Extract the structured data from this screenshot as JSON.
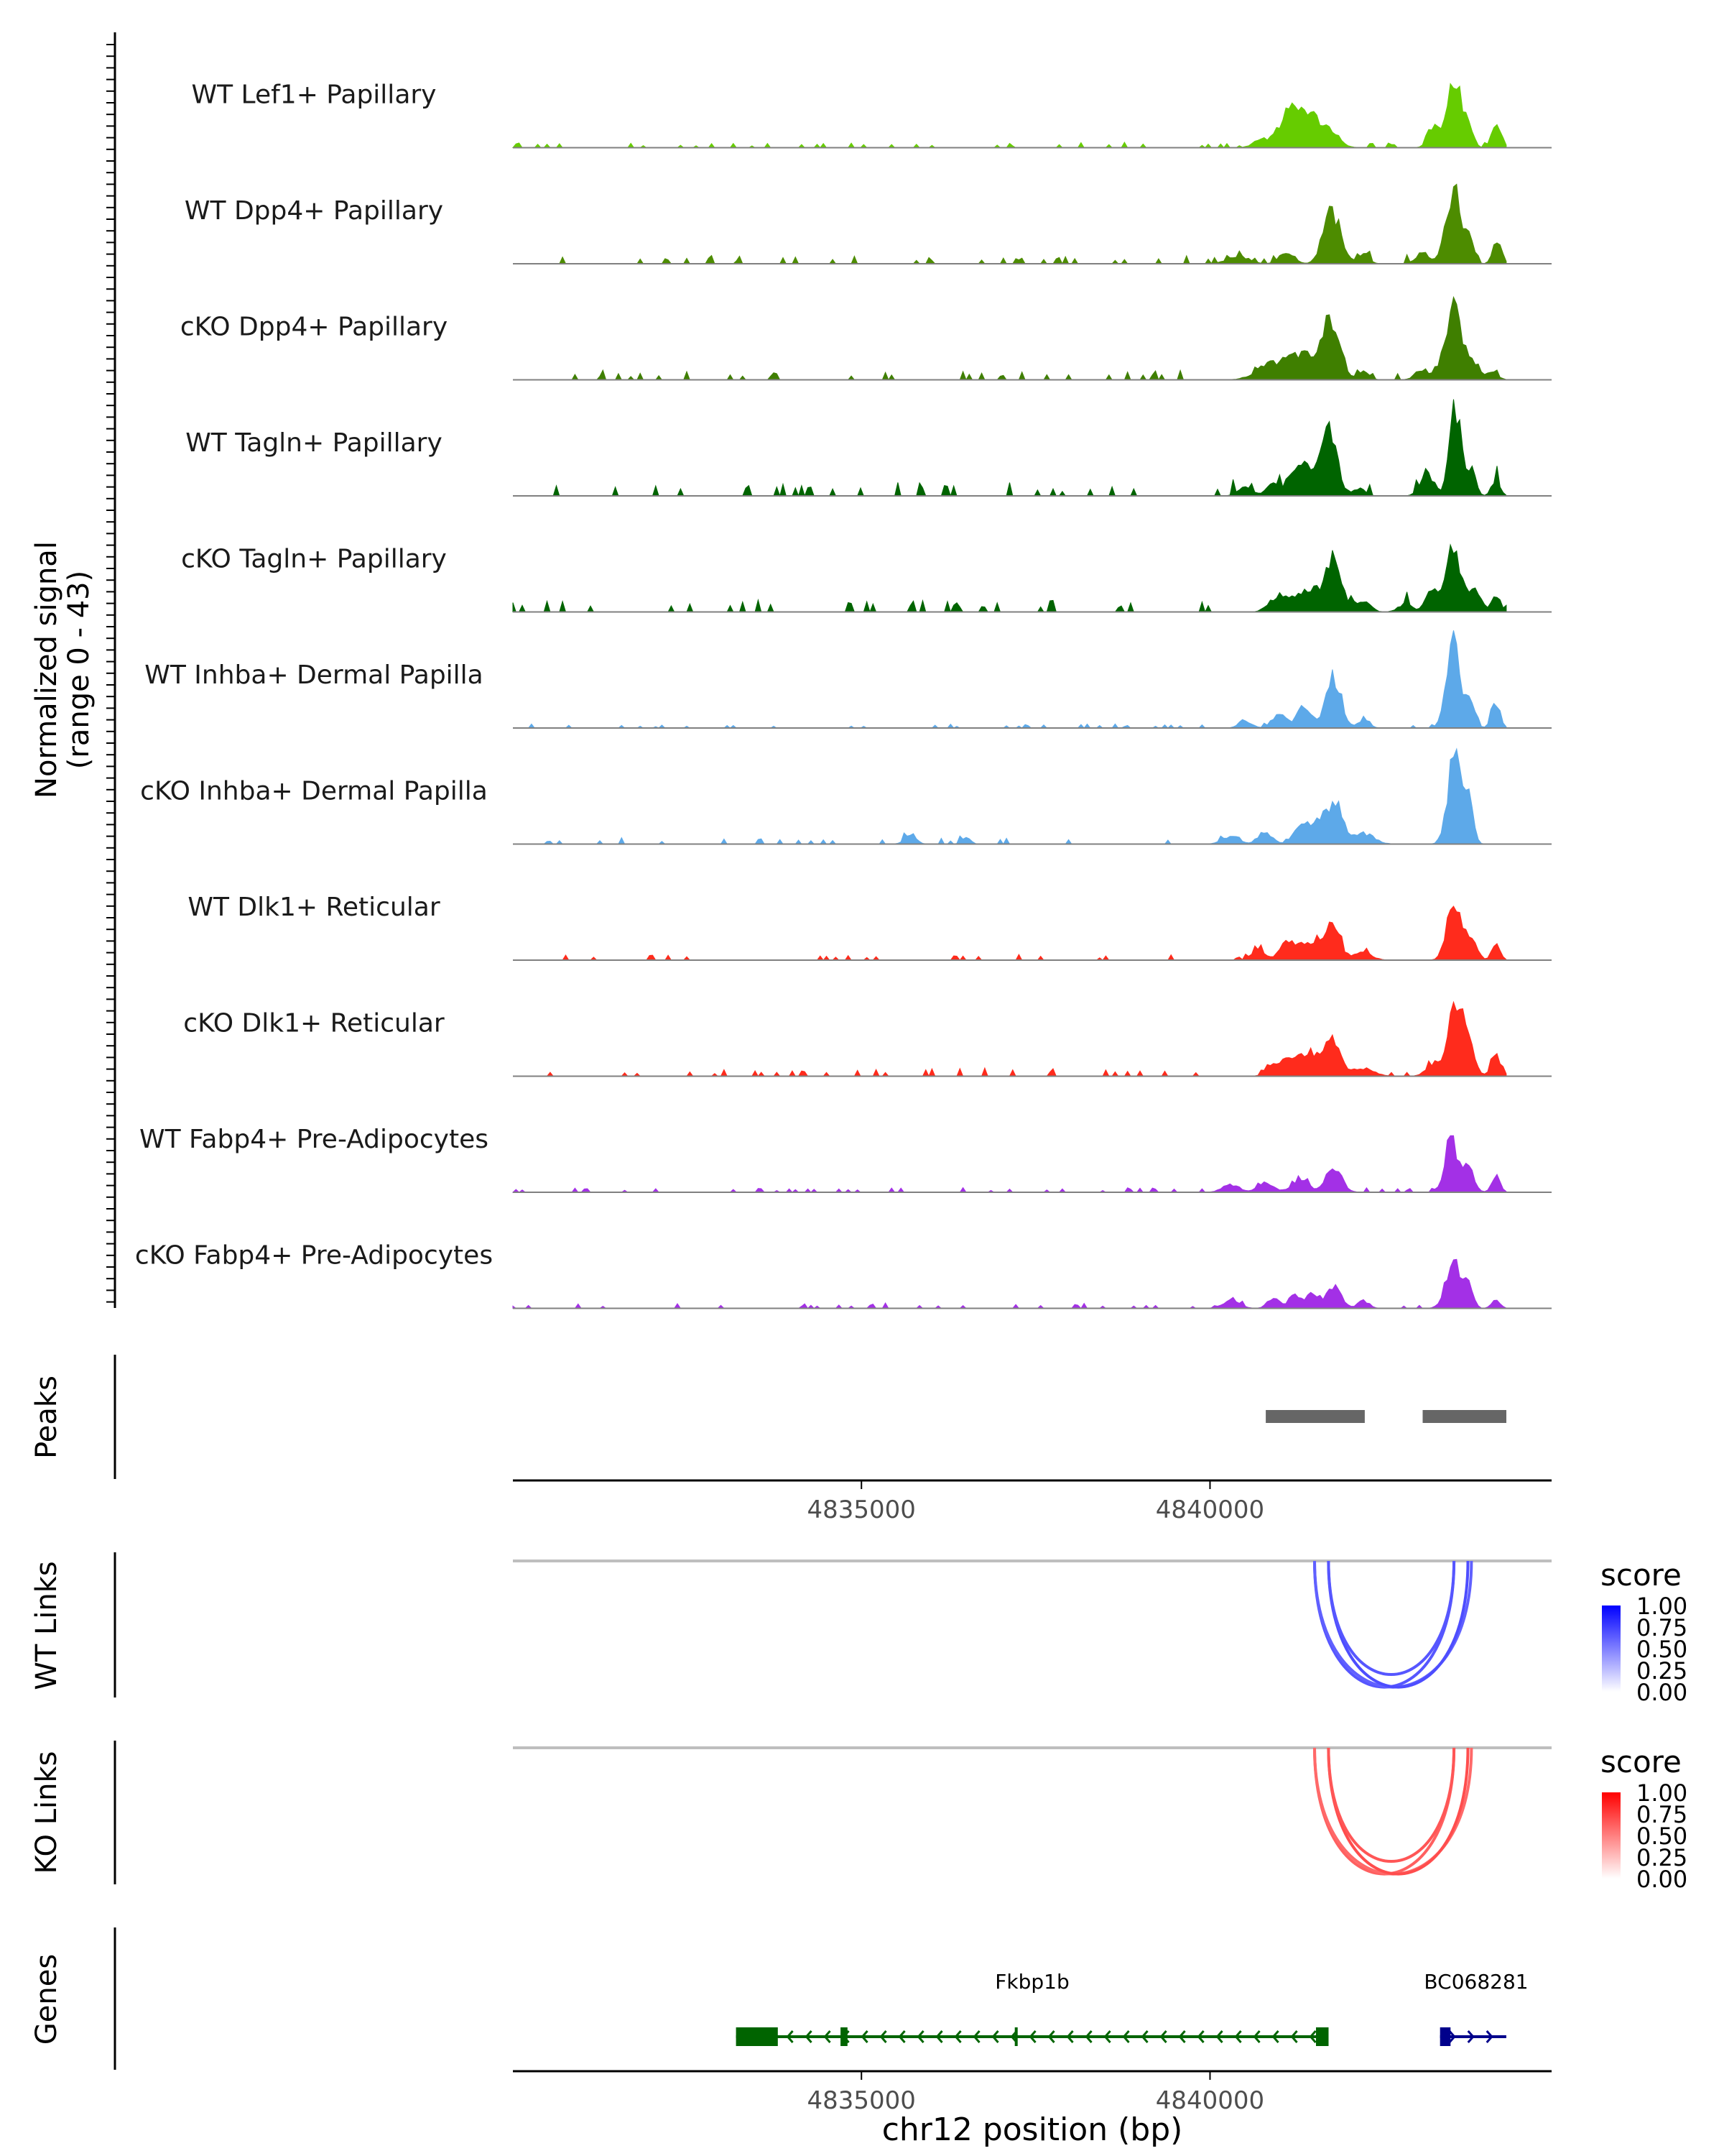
{
  "chart_data": {
    "type": "genome-coverage-track",
    "x_range": [
      4830000,
      4844900
    ],
    "xlabel": "chr12 position (bp)",
    "x_ticks": [
      4835000,
      4840000
    ],
    "x_tick_labels": [
      "4835000",
      "4840000"
    ],
    "coverage": {
      "ylabel_line1": "Normalized signal",
      "ylabel_line2": "(range 0 - 43)",
      "y_range": [
        0,
        43
      ],
      "tracks": [
        {
          "name": "WT Lef1+ Papillary",
          "color": "#66CC00",
          "peaks": [
            [
              4840700,
              100,
              2
            ],
            [
              4841300,
              250,
              16
            ],
            [
              4841750,
              120,
              3
            ],
            [
              4843200,
              80,
              8
            ],
            [
              4843500,
              100,
              27
            ],
            [
              4843720,
              60,
              8
            ],
            [
              4844120,
              70,
              7
            ],
            [
              4844050,
              40,
              3
            ]
          ],
          "noise": 0.8,
          "seed": 1
        },
        {
          "name": "WT Dpp4+ Papillary",
          "color": "#4D8C00",
          "peaks": [
            [
              4840400,
              150,
              3
            ],
            [
              4841100,
              100,
              5
            ],
            [
              4841750,
              120,
              20
            ],
            [
              4842200,
              80,
              4
            ],
            [
              4843050,
              100,
              4
            ],
            [
              4843500,
              110,
              28
            ],
            [
              4843730,
              60,
              8
            ],
            [
              4844120,
              60,
              10
            ]
          ],
          "noise": 1.2,
          "seed": 2
        },
        {
          "name": "cKO Dpp4+ Papillary",
          "color": "#3F7F00",
          "peaks": [
            [
              4840800,
              180,
              4
            ],
            [
              4841300,
              260,
              10
            ],
            [
              4841750,
              120,
              22
            ],
            [
              4842200,
              80,
              3
            ],
            [
              4843050,
              100,
              4
            ],
            [
              4843500,
              120,
              28
            ],
            [
              4843800,
              70,
              6
            ],
            [
              4844050,
              80,
              3
            ]
          ],
          "noise": 1.3,
          "seed": 3
        },
        {
          "name": "WT Tagln+ Papillary",
          "color": "#006400",
          "peaks": [
            [
              4840500,
              100,
              3
            ],
            [
              4840900,
              100,
              4
            ],
            [
              4841300,
              150,
              12
            ],
            [
              4841700,
              120,
              25
            ],
            [
              4842150,
              80,
              3
            ],
            [
              4843120,
              100,
              8
            ],
            [
              4843520,
              80,
              34
            ],
            [
              4843750,
              60,
              12
            ],
            [
              4844100,
              60,
              6
            ]
          ],
          "noise": 2.0,
          "seed": 4
        },
        {
          "name": "cKO Tagln+ Papillary",
          "color": "#006400",
          "peaks": [
            [
              4840900,
              100,
              4
            ],
            [
              4841200,
              150,
              6
            ],
            [
              4841500,
              120,
              8
            ],
            [
              4841780,
              110,
              20
            ],
            [
              4842200,
              100,
              4
            ],
            [
              4842800,
              100,
              3
            ],
            [
              4843200,
              100,
              8
            ],
            [
              4843500,
              100,
              25
            ],
            [
              4843800,
              80,
              10
            ],
            [
              4844100,
              60,
              7
            ]
          ],
          "noise": 1.8,
          "seed": 5
        },
        {
          "name": "WT Inhba+ Dermal Papilla",
          "color": "#5DA9E9",
          "peaks": [
            [
              4840500,
              90,
              3
            ],
            [
              4841000,
              100,
              5
            ],
            [
              4841350,
              100,
              8
            ],
            [
              4841770,
              110,
              20
            ],
            [
              4842200,
              80,
              3
            ],
            [
              4843500,
              100,
              33
            ],
            [
              4843750,
              60,
              10
            ],
            [
              4844100,
              60,
              10
            ]
          ],
          "noise": 0.6,
          "seed": 6
        },
        {
          "name": "cKO Inhba+ Dermal Papilla",
          "color": "#5DA9E9",
          "peaks": [
            [
              4835700,
              80,
              4
            ],
            [
              4836500,
              60,
              3
            ],
            [
              4840300,
              120,
              3
            ],
            [
              4840800,
              100,
              4
            ],
            [
              4841300,
              100,
              8
            ],
            [
              4841550,
              100,
              10
            ],
            [
              4841800,
              100,
              17
            ],
            [
              4842200,
              150,
              4
            ],
            [
              4843520,
              100,
              36
            ],
            [
              4843720,
              60,
              14
            ]
          ],
          "noise": 0.9,
          "seed": 7
        },
        {
          "name": "WT Dlk1+ Reticular",
          "color": "#FF2B1C",
          "peaks": [
            [
              4840700,
              100,
              4
            ],
            [
              4841100,
              100,
              5
            ],
            [
              4841400,
              200,
              7
            ],
            [
              4841760,
              110,
              12
            ],
            [
              4842200,
              120,
              3
            ],
            [
              4843500,
              100,
              22
            ],
            [
              4843750,
              80,
              8
            ],
            [
              4844100,
              60,
              6
            ]
          ],
          "noise": 0.8,
          "seed": 8
        },
        {
          "name": "cKO Dlk1+ Reticular",
          "color": "#FF2B1C",
          "peaks": [
            [
              4840900,
              100,
              4
            ],
            [
              4841200,
              150,
              6
            ],
            [
              4841500,
              150,
              8
            ],
            [
              4841780,
              110,
              12
            ],
            [
              4842200,
              150,
              3
            ],
            [
              4843200,
              100,
              5
            ],
            [
              4843520,
              100,
              30
            ],
            [
              4843720,
              80,
              12
            ],
            [
              4844100,
              70,
              8
            ]
          ],
          "noise": 1.1,
          "seed": 9
        },
        {
          "name": "WT Fabp4+ Pre-Adipocytes",
          "color": "#A330E6",
          "peaks": [
            [
              4840300,
              120,
              3
            ],
            [
              4840800,
              120,
              3
            ],
            [
              4841300,
              120,
              5
            ],
            [
              4841780,
              110,
              9
            ],
            [
              4843450,
              80,
              22
            ],
            [
              4843700,
              80,
              10
            ],
            [
              4844100,
              60,
              6
            ]
          ],
          "noise": 0.7,
          "seed": 10
        },
        {
          "name": "cKO Fabp4+ Pre-Adipocytes",
          "color": "#A330E6",
          "peaks": [
            [
              4840300,
              120,
              3
            ],
            [
              4840900,
              80,
              4
            ],
            [
              4841200,
              80,
              5
            ],
            [
              4841450,
              80,
              6
            ],
            [
              4841780,
              100,
              9
            ],
            [
              4842200,
              80,
              3
            ],
            [
              4843500,
              110,
              19
            ],
            [
              4843720,
              60,
              8
            ],
            [
              4844100,
              60,
              3
            ]
          ],
          "noise": 0.7,
          "seed": 11
        }
      ]
    },
    "peaks_track": {
      "label": "Peaks",
      "regions": [
        [
          4840800,
          4842220
        ],
        [
          4843050,
          4844250
        ]
      ]
    },
    "links_tracks": [
      {
        "label": "WT Links",
        "legend_title": "score",
        "color_high": "#0000FF",
        "legend_ticks": [
          "1.00",
          "0.75",
          "0.50",
          "0.25",
          "0.00"
        ],
        "links": [
          {
            "start": 4841500,
            "end": 4843500,
            "score": 0.55
          },
          {
            "start": 4841500,
            "end": 4843750,
            "score": 0.5
          },
          {
            "start": 4841700,
            "end": 4843700,
            "score": 0.6
          },
          {
            "start": 4841700,
            "end": 4843500,
            "score": 0.55
          }
        ]
      },
      {
        "label": "KO Links",
        "legend_title": "score",
        "color_high": "#FF0000",
        "legend_ticks": [
          "1.00",
          "0.75",
          "0.50",
          "0.25",
          "0.00"
        ],
        "links": [
          {
            "start": 4841500,
            "end": 4843500,
            "score": 0.5
          },
          {
            "start": 4841500,
            "end": 4843750,
            "score": 0.45
          },
          {
            "start": 4841700,
            "end": 4843700,
            "score": 0.6
          },
          {
            "start": 4841700,
            "end": 4843500,
            "score": 0.55
          }
        ]
      }
    ],
    "genes_track": {
      "label": "Genes",
      "genes": [
        {
          "name": "Fkbp1b",
          "start": 4833200,
          "end": 4841700,
          "strand": "-",
          "color": "#006400",
          "exons": [
            [
              4833200,
              4833800
            ],
            [
              4834700,
              4834800
            ],
            [
              4837200,
              4837240
            ],
            [
              4841520,
              4841700
            ]
          ]
        },
        {
          "name": "BC068281",
          "start": 4843300,
          "end": 4844250,
          "strand": "+",
          "color": "#00008B",
          "exons": [
            [
              4843300,
              4843450
            ]
          ]
        }
      ]
    }
  }
}
